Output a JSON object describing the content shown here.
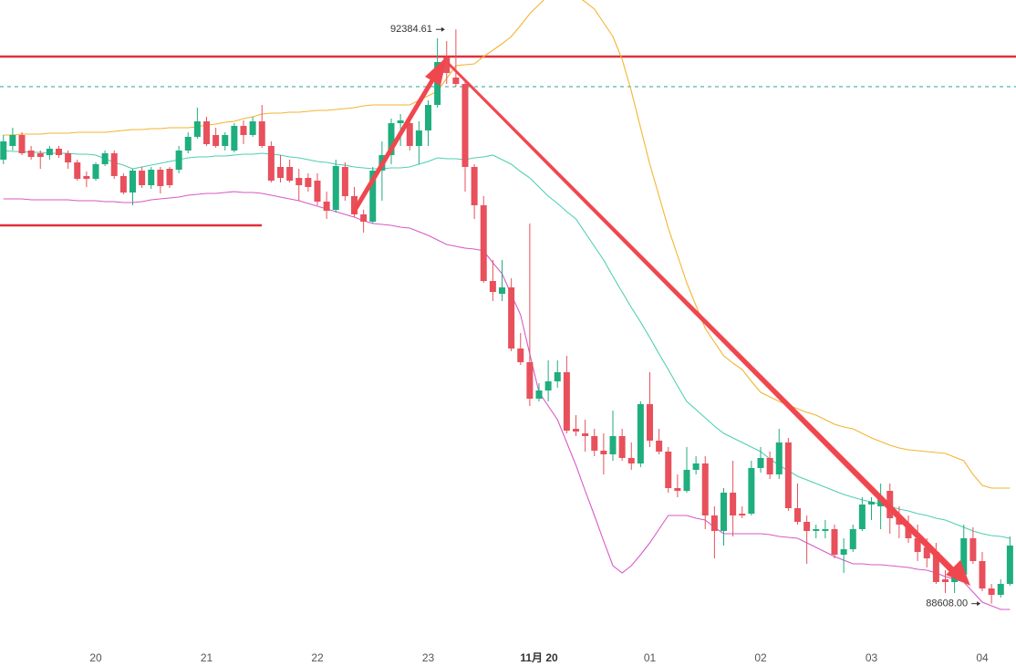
{
  "chart_data": {
    "type": "candlestick",
    "categories": [
      null,
      null,
      null,
      null,
      null,
      null,
      null,
      null,
      null,
      null,
      "20",
      null,
      null,
      null,
      null,
      null,
      null,
      null,
      null,
      null,
      null,
      null,
      "21",
      null,
      null,
      null,
      null,
      null,
      null,
      null,
      null,
      null,
      null,
      null,
      "22",
      null,
      null,
      null,
      null,
      null,
      null,
      null,
      null,
      null,
      null,
      null,
      "23",
      null,
      null,
      null,
      null,
      null,
      null,
      null,
      null,
      null,
      null,
      null,
      "11月 20",
      null,
      null,
      null,
      null,
      null,
      null,
      null,
      null,
      null,
      null,
      null,
      "01",
      null,
      null,
      null,
      null,
      null,
      null,
      null,
      null,
      null,
      null,
      null,
      "02",
      null,
      null,
      null,
      null,
      null,
      null,
      null,
      null,
      null,
      null,
      null,
      "03",
      null,
      null,
      null,
      null,
      null,
      null,
      null,
      null,
      null,
      null,
      null,
      "04",
      null,
      null,
      null
    ],
    "ohlc": [
      [
        91528,
        91690,
        91498,
        91648
      ],
      [
        91618,
        91738,
        91588,
        91690
      ],
      [
        91690,
        91708,
        91558,
        91570
      ],
      [
        91588,
        91618,
        91528,
        91546
      ],
      [
        91570,
        91588,
        91468,
        91546
      ],
      [
        91558,
        91618,
        91528,
        91600
      ],
      [
        91600,
        91618,
        91540,
        91558
      ],
      [
        91570,
        91588,
        91468,
        91510
      ],
      [
        91510,
        91528,
        91390,
        91402
      ],
      [
        91420,
        91450,
        91348,
        91402
      ],
      [
        91402,
        91510,
        91390,
        91498
      ],
      [
        91498,
        91588,
        91486,
        91570
      ],
      [
        91570,
        91588,
        91402,
        91420
      ],
      [
        91420,
        91438,
        91300,
        91312
      ],
      [
        91312,
        91468,
        91228,
        91456
      ],
      [
        91456,
        91480,
        91342,
        91360
      ],
      [
        91360,
        91480,
        91336,
        91462
      ],
      [
        91462,
        91480,
        91306,
        91354
      ],
      [
        91468,
        91480,
        91342,
        91360
      ],
      [
        91462,
        91618,
        91438,
        91588
      ],
      [
        91588,
        91708,
        91570,
        91678
      ],
      [
        91678,
        91870,
        91666,
        91780
      ],
      [
        91780,
        91810,
        91618,
        91630
      ],
      [
        91690,
        91738,
        91606,
        91618
      ],
      [
        91618,
        91708,
        91588,
        91690
      ],
      [
        91588,
        91768,
        91576,
        91750
      ],
      [
        91750,
        91786,
        91630,
        91690
      ],
      [
        91690,
        91810,
        91678,
        91780
      ],
      [
        91780,
        91888,
        91606,
        91618
      ],
      [
        91618,
        91648,
        91378,
        91390
      ],
      [
        91480,
        91558,
        91378,
        91408
      ],
      [
        91480,
        91528,
        91378,
        91390
      ],
      [
        91408,
        91468,
        91258,
        91360
      ],
      [
        91408,
        91438,
        91318,
        91348
      ],
      [
        91390,
        91438,
        91228,
        91252
      ],
      [
        91252,
        91318,
        91138,
        91192
      ],
      [
        91198,
        91528,
        91180,
        91486
      ],
      [
        91480,
        91510,
        91258,
        91288
      ],
      [
        91288,
        91348,
        91150,
        91168
      ],
      [
        91168,
        91198,
        91048,
        91120
      ],
      [
        91120,
        91480,
        91108,
        91456
      ],
      [
        91456,
        91648,
        91258,
        91558
      ],
      [
        91558,
        91798,
        91498,
        91768
      ],
      [
        91768,
        91828,
        91618,
        91786
      ],
      [
        91768,
        91810,
        91588,
        91618
      ],
      [
        91618,
        91780,
        91498,
        91720
      ],
      [
        91720,
        91918,
        91618,
        91888
      ],
      [
        91888,
        92326,
        91870,
        92170
      ],
      [
        92200,
        92308,
        92026,
        92098
      ],
      [
        92068,
        92384.61,
        92008,
        92026
      ],
      [
        92026,
        92038,
        91318,
        91480
      ],
      [
        91480,
        91498,
        91138,
        91228
      ],
      [
        91228,
        91288,
        90718,
        90730
      ],
      [
        90730,
        90868,
        90598,
        90658
      ],
      [
        90646,
        90868,
        90598,
        90688
      ],
      [
        90688,
        90748,
        90268,
        90286
      ],
      [
        90286,
        90388,
        90178,
        90196
      ],
      [
        90196,
        91108,
        89908,
        89956
      ],
      [
        89956,
        90058,
        89938,
        90010
      ],
      [
        90010,
        90208,
        89938,
        90070
      ],
      [
        90070,
        90208,
        90028,
        90130
      ],
      [
        90130,
        90238,
        89728,
        89746
      ],
      [
        89758,
        89848,
        89710,
        89740
      ],
      [
        89728,
        89818,
        89608,
        89710
      ],
      [
        89710,
        89758,
        89578,
        89614
      ],
      [
        89614,
        89728,
        89458,
        89590
      ],
      [
        89590,
        89878,
        89548,
        89710
      ],
      [
        89710,
        89758,
        89548,
        89566
      ],
      [
        89566,
        89668,
        89488,
        89530
      ],
      [
        89530,
        89938,
        89506,
        89920
      ],
      [
        89920,
        90130,
        89638,
        89680
      ],
      [
        89680,
        89758,
        89590,
        89608
      ],
      [
        89608,
        89638,
        89338,
        89368
      ],
      [
        89368,
        89458,
        89308,
        89350
      ],
      [
        89350,
        89638,
        89338,
        89488
      ],
      [
        89488,
        89578,
        89458,
        89530
      ],
      [
        89530,
        89578,
        89098,
        89188
      ],
      [
        89188,
        89248,
        88906,
        89086
      ],
      [
        89086,
        89368,
        88990,
        89338
      ],
      [
        89338,
        89548,
        89050,
        89188
      ],
      [
        89200,
        89248,
        89170,
        89188
      ],
      [
        89200,
        89548,
        89188,
        89500
      ],
      [
        89500,
        89638,
        89470,
        89566
      ],
      [
        89566,
        89608,
        89428,
        89458
      ],
      [
        89458,
        89758,
        89428,
        89668
      ],
      [
        89668,
        89698,
        89218,
        89236
      ],
      [
        89236,
        89398,
        89128,
        89146
      ],
      [
        89146,
        89188,
        88870,
        89086
      ],
      [
        89086,
        89128,
        89038,
        89098
      ],
      [
        89086,
        89158,
        89038,
        89098
      ],
      [
        89098,
        89128,
        88906,
        88930
      ],
      [
        88930,
        89038,
        88810,
        88966
      ],
      [
        88966,
        89128,
        88948,
        89098
      ],
      [
        89098,
        89308,
        89086,
        89260
      ],
      [
        89260,
        89308,
        89158,
        89278
      ],
      [
        89248,
        89398,
        89098,
        89308
      ],
      [
        89350,
        89398,
        89068,
        89170
      ],
      [
        89170,
        89248,
        89038,
        89128
      ],
      [
        89128,
        89188,
        89008,
        89038
      ],
      [
        89038,
        89128,
        88888,
        88948
      ],
      [
        88978,
        89038,
        88846,
        88906
      ],
      [
        88948,
        89008,
        88738,
        88750
      ],
      [
        88768,
        88828,
        88678,
        88750
      ],
      [
        88750,
        88828,
        88678,
        88798
      ],
      [
        88798,
        89128,
        88786,
        89038
      ],
      [
        89038,
        89110,
        88870,
        88888
      ],
      [
        88888,
        88948,
        88690,
        88708
      ],
      [
        88708,
        88738,
        88608.0,
        88666
      ],
      [
        88666,
        88768,
        88648,
        88738
      ],
      [
        88738,
        89050,
        88726,
        88990
      ]
    ],
    "up_color": "#1fae7e",
    "down_color": "#e8505b",
    "bands": [
      {
        "color": "#f2b530",
        "values": [
          91690,
          91690,
          91696,
          91696,
          91696,
          91702,
          91702,
          91702,
          91708,
          91708,
          91708,
          91708,
          91714,
          91720,
          91726,
          91726,
          91732,
          91732,
          91738,
          91738,
          91738,
          91744,
          91756,
          91762,
          91774,
          91780,
          91798,
          91810,
          91828,
          91834,
          91834,
          91840,
          91840,
          91846,
          91852,
          91852,
          91858,
          91864,
          91870,
          91882,
          91888,
          91888,
          91888,
          91888,
          91888,
          91918,
          91948,
          91978,
          92062,
          92146,
          92152,
          92158,
          92206,
          92248,
          92290,
          92338,
          92410,
          92488,
          92548,
          92608,
          92626,
          92620,
          92608,
          92566,
          92518,
          92428,
          92338,
          92188,
          91978,
          91738,
          91498,
          91288,
          91078,
          90898,
          90718,
          90568,
          90418,
          90328,
          90238,
          90190,
          90148,
          90070,
          89998,
          89968,
          89938,
          89914,
          89890,
          89866,
          89848,
          89818,
          89788,
          89770,
          89758,
          89728,
          89698,
          89674,
          89650,
          89632,
          89620,
          89614,
          89608,
          89602,
          89596,
          89572,
          89548,
          89458,
          89386,
          89368,
          89368,
          89368
        ]
      },
      {
        "color": "#4fcfb2",
        "values": [
          91588,
          91582,
          91582,
          91576,
          91576,
          91570,
          91570,
          91570,
          91564,
          91564,
          91558,
          91534,
          91510,
          91492,
          91468,
          91480,
          91492,
          91504,
          91516,
          91528,
          91540,
          91546,
          91546,
          91552,
          91552,
          91558,
          91564,
          91564,
          91570,
          91564,
          91558,
          91546,
          91540,
          91528,
          91516,
          91510,
          91498,
          91492,
          91480,
          91474,
          91468,
          91468,
          91474,
          91474,
          91480,
          91498,
          91516,
          91540,
          91534,
          91534,
          91528,
          91540,
          91546,
          91558,
          91528,
          91498,
          91450,
          91408,
          91348,
          91288,
          91240,
          91186,
          91138,
          91048,
          90958,
          90868,
          90760,
          90658,
          90556,
          90460,
          90358,
          90250,
          90148,
          90040,
          89938,
          89884,
          89830,
          89776,
          89728,
          89698,
          89668,
          89638,
          89608,
          89560,
          89518,
          89482,
          89446,
          89422,
          89398,
          89374,
          89350,
          89326,
          89308,
          89290,
          89278,
          89260,
          89248,
          89230,
          89218,
          89200,
          89188,
          89170,
          89158,
          89134,
          89110,
          89086,
          89068,
          89056,
          89050,
          89038
        ]
      },
      {
        "color": "#d65ac6",
        "values": [
          91270,
          91270,
          91270,
          91264,
          91264,
          91264,
          91264,
          91264,
          91258,
          91258,
          91258,
          91252,
          91252,
          91246,
          91246,
          91252,
          91264,
          91270,
          91276,
          91282,
          91294,
          91300,
          91306,
          91306,
          91312,
          91318,
          91312,
          91312,
          91306,
          91294,
          91282,
          91270,
          91258,
          91240,
          91222,
          91204,
          91186,
          91168,
          91150,
          91126,
          91108,
          91102,
          91096,
          91084,
          91078,
          91054,
          91030,
          91000,
          90970,
          90958,
          90946,
          90940,
          90928,
          90850,
          90778,
          90640,
          90508,
          90250,
          89998,
          89908,
          89818,
          89668,
          89518,
          89350,
          89188,
          89020,
          88858,
          88810,
          88858,
          88930,
          89008,
          89098,
          89188,
          89188,
          89188,
          89170,
          89158,
          89110,
          89068,
          89068,
          89068,
          89068,
          89068,
          89062,
          89050,
          89044,
          89038,
          89008,
          88978,
          88948,
          88918,
          88894,
          88870,
          88870,
          88864,
          88864,
          88858,
          88852,
          88846,
          88834,
          88828,
          88810,
          88786,
          88768,
          88750,
          88684,
          88618,
          88594,
          88570,
          88570
        ]
      }
    ],
    "levels": [
      {
        "value": 92206,
        "color": "#e0303a",
        "style": "solid"
      },
      {
        "value": 92008,
        "color": "#26a69a",
        "style": "dashed"
      },
      {
        "value": 91096,
        "color": "#e0303a",
        "style": "solid"
      }
    ],
    "high_label": "92384.61",
    "low_label": "88608.00",
    "ylim": [
      88378,
      92578
    ]
  }
}
